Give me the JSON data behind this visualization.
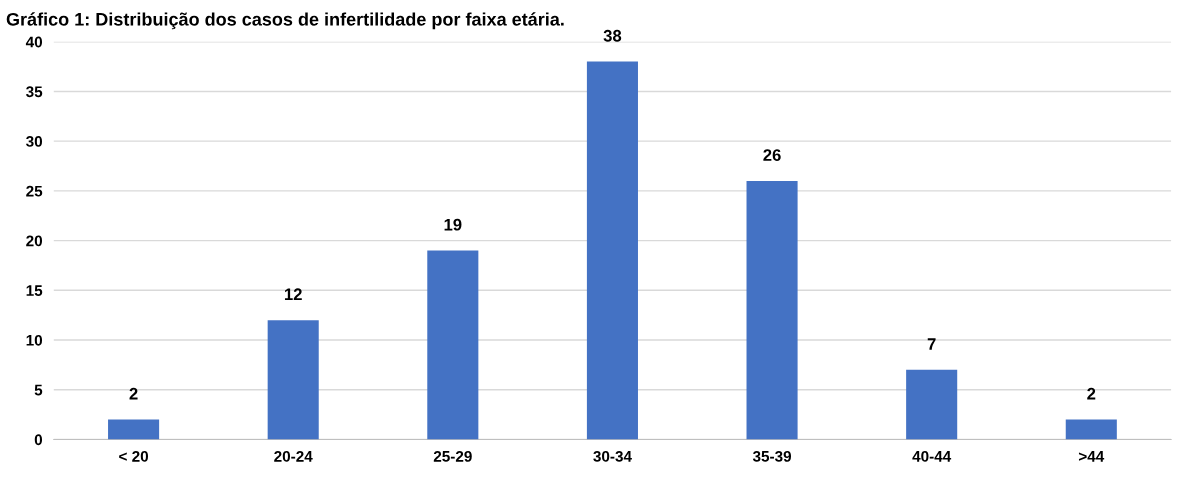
{
  "chart_data": {
    "type": "bar",
    "title": "Gráfico 1: Distribuição dos casos de infertilidade por faixa etária.",
    "categories": [
      "< 20",
      "20-24",
      "25-29",
      "30-34",
      "35-39",
      "40-44",
      ">44"
    ],
    "values": [
      2,
      12,
      19,
      38,
      26,
      7,
      2
    ],
    "color": "#4472c4",
    "ylim": [
      0,
      40
    ],
    "yticks": [
      0,
      5,
      10,
      15,
      20,
      25,
      30,
      35,
      40
    ],
    "grid": "y",
    "data_labels": true
  }
}
